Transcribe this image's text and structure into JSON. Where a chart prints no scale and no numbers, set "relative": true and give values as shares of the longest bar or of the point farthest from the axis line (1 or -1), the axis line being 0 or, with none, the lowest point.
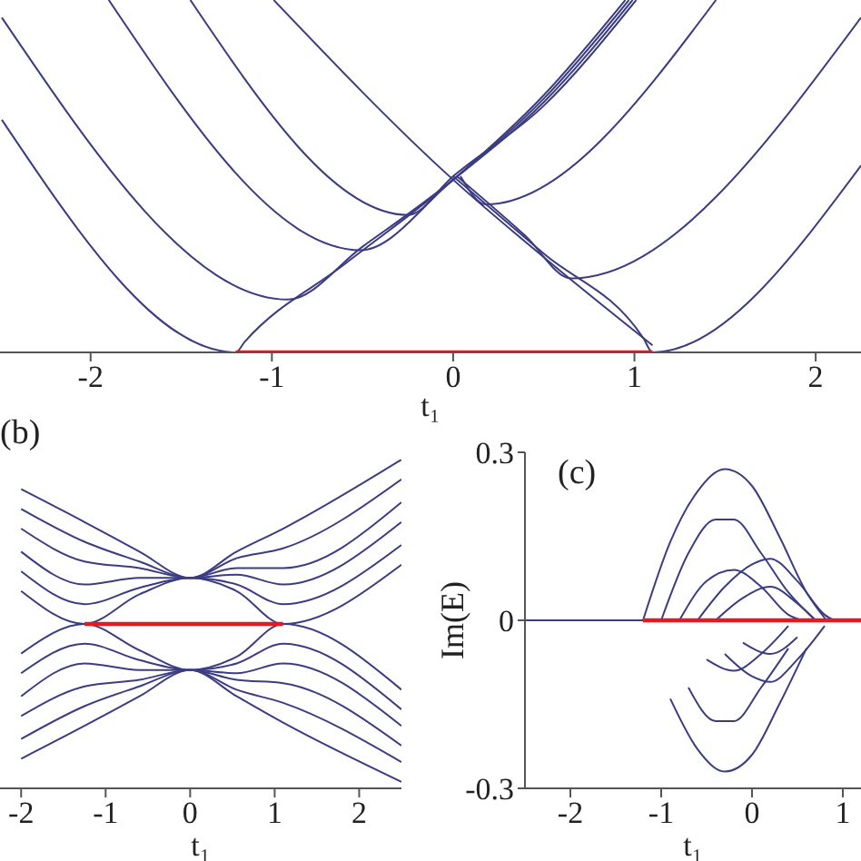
{
  "chart_data": [
    {
      "type": "line",
      "relative": true,
      "xlabel": "t₁",
      "xlim": [
        -2.5,
        2.25
      ],
      "xticks": [
        -2,
        -1,
        0,
        1,
        2
      ],
      "series": [
        {
          "color": "#3c3c82",
          "x": [
            -2.49,
            -1.2,
            -1.15,
            -0.6,
            0,
            0.5,
            0.95
          ],
          "values": [
            0.66,
            0,
            0.03,
            0.25,
            0.49,
            0.73,
            1
          ]
        },
        {
          "color": "#3c3c82",
          "x": [
            -2.49,
            -0.91,
            -0.5,
            0,
            0.5,
            0.97
          ],
          "values": [
            0.95,
            0.15,
            0.3,
            0.49,
            0.72,
            1
          ]
        },
        {
          "color": "#3c3c82",
          "x": [
            -1.9,
            -0.51,
            0,
            0.5,
            0.99
          ],
          "values": [
            1,
            0.29,
            0.49,
            0.71,
            1
          ]
        },
        {
          "color": "#3c3c82",
          "x": [
            -1.45,
            -0.25,
            0,
            0.5,
            1.01
          ],
          "values": [
            1,
            0.39,
            0.5,
            0.7,
            1
          ]
        },
        {
          "color": "#3c3c82",
          "x": [
            -0.99,
            0,
            0.5,
            1.1
          ],
          "values": [
            1,
            0.49,
            0.27,
            0.02
          ]
        },
        {
          "color": "#3c3c82",
          "x": [
            0,
            0.5,
            1.05,
            1.1,
            2.25
          ],
          "values": [
            0.5,
            0.28,
            0.04,
            0,
            0.53
          ]
        },
        {
          "color": "#3c3c82",
          "x": [
            0.02,
            0.4,
            0.65,
            2.25
          ],
          "values": [
            0.5,
            0.33,
            0.21,
            0.95
          ]
        },
        {
          "color": "#3c3c82",
          "x": [
            0.04,
            0.18,
            1.45
          ],
          "values": [
            0.5,
            0.42,
            1
          ]
        },
        {
          "color": "#e01b24",
          "x": [
            -1.2,
            1.1
          ],
          "values": [
            0,
            0
          ]
        }
      ]
    },
    {
      "type": "line",
      "relative": true,
      "xlabel": "t₁",
      "xlim": [
        -2.25,
        2.5
      ],
      "xticks": [
        -2,
        -1,
        0,
        1,
        2
      ],
      "annotations": [
        "(b)"
      ],
      "x": [
        -2,
        -1.25,
        -0.6,
        0,
        0.55,
        1.1,
        2.5
      ],
      "series": [
        {
          "color": "#3c3c82",
          "values": [
            0.6,
            0.5,
            0.59,
            0.64,
            0.6,
            0.5,
            0.68
          ]
        },
        {
          "color": "#3c3c82",
          "values": [
            0.66,
            0.56,
            0.61,
            0.64,
            0.62,
            0.56,
            0.74
          ]
        },
        {
          "color": "#3c3c82",
          "values": [
            0.72,
            0.62,
            0.64,
            0.64,
            0.65,
            0.62,
            0.81
          ]
        },
        {
          "color": "#3c3c82",
          "values": [
            0.79,
            0.69,
            0.67,
            0.64,
            0.67,
            0.67,
            0.87
          ]
        },
        {
          "color": "#3c3c82",
          "values": [
            0.85,
            0.75,
            0.69,
            0.64,
            0.7,
            0.73,
            0.94
          ]
        },
        {
          "color": "#3c3c82",
          "values": [
            0.91,
            0.81,
            0.72,
            0.64,
            0.72,
            0.79,
            1
          ]
        },
        {
          "color": "#3c3c82",
          "values": [
            0.41,
            0.5,
            0.42,
            0.36,
            0.4,
            0.5,
            0.3
          ]
        },
        {
          "color": "#3c3c82",
          "values": [
            0.35,
            0.44,
            0.39,
            0.36,
            0.38,
            0.44,
            0.24
          ]
        },
        {
          "color": "#3c3c82",
          "values": [
            0.28,
            0.38,
            0.36,
            0.36,
            0.35,
            0.38,
            0.19
          ]
        },
        {
          "color": "#3c3c82",
          "values": [
            0.22,
            0.31,
            0.33,
            0.36,
            0.33,
            0.32,
            0.13
          ]
        },
        {
          "color": "#3c3c82",
          "values": [
            0.15,
            0.25,
            0.31,
            0.36,
            0.3,
            0.26,
            0.08
          ]
        },
        {
          "color": "#3c3c82",
          "values": [
            0.09,
            0.19,
            0.28,
            0.36,
            0.28,
            0.2,
            0.02
          ]
        },
        {
          "color": "#e01b24",
          "x": [
            -1.25,
            1.1
          ],
          "values": [
            0.5,
            0.5
          ]
        }
      ]
    },
    {
      "type": "line",
      "xlabel": "t₁",
      "ylabel": "Im(E)",
      "xlim": [
        -2.5,
        1.2
      ],
      "xticks": [
        -2,
        -1,
        0,
        1
      ],
      "ylim": [
        -0.3,
        0.3
      ],
      "yticks": [
        -0.3,
        0,
        0.3
      ],
      "annotations": [
        "(c)"
      ],
      "series": [
        {
          "color": "#3c3c82",
          "x": [
            -1.2,
            -0.9,
            -0.6,
            -0.3,
            0,
            0.3,
            0.6,
            0.82
          ],
          "values": [
            0,
            0.14,
            0.23,
            0.27,
            0.24,
            0.15,
            0.05,
            0
          ]
        },
        {
          "color": "#3c3c82",
          "x": [
            -0.9,
            -0.6,
            -0.3,
            0,
            0.3,
            0.6
          ],
          "values": [
            -0.14,
            -0.23,
            -0.27,
            -0.24,
            -0.15,
            -0.05
          ]
        },
        {
          "color": "#3c3c82",
          "x": [
            -1.0,
            -0.7,
            -0.4,
            -0.2,
            0.1,
            0.4,
            0.7
          ],
          "values": [
            0,
            0.12,
            0.18,
            0.18,
            0.12,
            0.05,
            0
          ]
        },
        {
          "color": "#3c3c82",
          "x": [
            -0.7,
            -0.4,
            -0.2,
            0.1,
            0.4
          ],
          "values": [
            -0.12,
            -0.18,
            -0.18,
            -0.12,
            -0.05
          ]
        },
        {
          "color": "#3c3c82",
          "x": [
            -0.8,
            -0.5,
            -0.2,
            0.1,
            0.4,
            0.55
          ],
          "values": [
            0,
            0.07,
            0.09,
            0.06,
            0.01,
            0
          ]
        },
        {
          "color": "#3c3c82",
          "x": [
            -0.5,
            -0.2,
            0.1,
            0.4
          ],
          "values": [
            -0.07,
            -0.09,
            -0.06,
            -0.01
          ]
        },
        {
          "color": "#3c3c82",
          "x": [
            -0.6,
            -0.3,
            0,
            0.2,
            0.5,
            0.8,
            0.9
          ],
          "values": [
            0,
            0.06,
            0.1,
            0.11,
            0.07,
            0.01,
            0
          ]
        },
        {
          "color": "#3c3c82",
          "x": [
            -0.3,
            0,
            0.2,
            0.5,
            0.8
          ],
          "values": [
            -0.06,
            -0.1,
            -0.11,
            -0.07,
            -0.01
          ]
        },
        {
          "color": "#3c3c82",
          "x": [
            -0.4,
            -0.1,
            0.2,
            0.5,
            0.7
          ],
          "values": [
            0,
            0.04,
            0.06,
            0.03,
            0
          ]
        },
        {
          "color": "#3c3c82",
          "x": [
            -0.1,
            0.2,
            0.5
          ],
          "values": [
            -0.04,
            -0.06,
            -0.03
          ]
        },
        {
          "color": "#3c3c82",
          "x": [
            -2.5,
            -1.2
          ],
          "values": [
            0,
            0
          ]
        },
        {
          "color": "#e01b24",
          "x": [
            -1.2,
            1.2
          ],
          "values": [
            0,
            0
          ]
        }
      ]
    }
  ]
}
